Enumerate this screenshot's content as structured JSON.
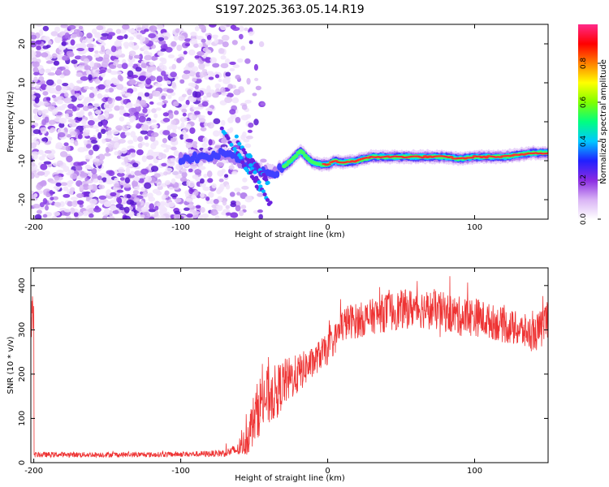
{
  "title": "S197.2025.363.05.14.R19",
  "chart_data": [
    {
      "type": "heatmap",
      "xlabel": "Height of straight line (km)",
      "ylabel": "Frequency (Hz)",
      "xlim": [
        -202,
        150
      ],
      "ylim": [
        -25,
        25
      ],
      "xticks": [
        -200,
        -100,
        0,
        100
      ],
      "xtick_labels": [
        "-200",
        "-100",
        "0",
        "100"
      ],
      "yticks": [
        -20,
        -10,
        0,
        10,
        20
      ],
      "ytick_labels": [
        "-20",
        "-10",
        "0",
        "10",
        "20"
      ],
      "noise_region": {
        "x_range": [
          -202,
          -60
        ],
        "freq_range": [
          -25,
          25
        ]
      },
      "signal_track": {
        "heights_km": [
          -100,
          -80,
          -70,
          -60,
          -50,
          -40,
          -35,
          -30,
          -25,
          -20,
          -18,
          -15,
          -10,
          -5,
          0,
          5,
          10,
          20,
          30,
          40,
          60,
          80,
          90,
          100,
          120,
          130,
          140,
          150
        ],
        "frequency_hz": [
          -9.5,
          -9,
          -8,
          -10,
          -12,
          -13,
          -13,
          -11.5,
          -10,
          -8,
          -7.5,
          -9,
          -10.5,
          -11,
          -11,
          -10,
          -10.5,
          -10,
          -9,
          -9,
          -9,
          -9,
          -9.5,
          -9,
          -9,
          -8.5,
          -8,
          -8
        ]
      },
      "colorbar": {
        "label": "Normalized spectral amplitude",
        "range": [
          0.0,
          1.0
        ],
        "ticks": [
          0.0,
          0.2,
          0.4,
          0.6,
          0.8
        ],
        "tick_labels": [
          "0.0",
          "0.2",
          "0.4",
          "0.6",
          "0.8"
        ],
        "gradient_colors": [
          "#ffffff",
          "#d9b3f5",
          "#8a2be2",
          "#2020ff",
          "#00c8ff",
          "#00ff80",
          "#80ff00",
          "#ffff00",
          "#ff8000",
          "#ff0000",
          "#ff2a8a"
        ]
      }
    },
    {
      "type": "line",
      "xlabel": "Height of straight line (km)",
      "ylabel": "SNR (10 * v/v)",
      "xlim": [
        -202,
        150
      ],
      "ylim": [
        0,
        440
      ],
      "xticks": [
        -200,
        -100,
        0,
        100
      ],
      "xtick_labels": [
        "-200",
        "-100",
        "0",
        "100"
      ],
      "yticks": [
        0,
        100,
        200,
        300,
        400
      ],
      "ytick_labels": [
        "0",
        "100",
        "200",
        "300",
        "400"
      ],
      "line_color": "#ee3333",
      "series": [
        {
          "name": "SNR",
          "x": [
            -200,
            -180,
            -160,
            -140,
            -120,
            -100,
            -80,
            -70,
            -60,
            -55,
            -50,
            -45,
            -40,
            -35,
            -30,
            -25,
            -20,
            -15,
            -10,
            -5,
            0,
            5,
            10,
            15,
            20,
            30,
            40,
            50,
            60,
            70,
            80,
            90,
            100,
            110,
            120,
            130,
            140,
            145,
            150
          ],
          "y": [
            18,
            18,
            18,
            18,
            18,
            19,
            20,
            22,
            30,
            55,
            100,
            140,
            150,
            160,
            180,
            190,
            200,
            215,
            225,
            245,
            255,
            280,
            310,
            320,
            320,
            330,
            340,
            345,
            350,
            345,
            340,
            330,
            330,
            320,
            310,
            300,
            290,
            300,
            330
          ],
          "noise_amplitude": [
            6,
            6,
            6,
            6,
            6,
            6,
            7,
            9,
            15,
            40,
            60,
            70,
            70,
            60,
            55,
            50,
            45,
            40,
            35,
            35,
            35,
            35,
            40,
            40,
            40,
            40,
            45,
            45,
            45,
            45,
            45,
            45,
            45,
            40,
            40,
            40,
            40,
            45,
            50
          ]
        }
      ]
    }
  ]
}
